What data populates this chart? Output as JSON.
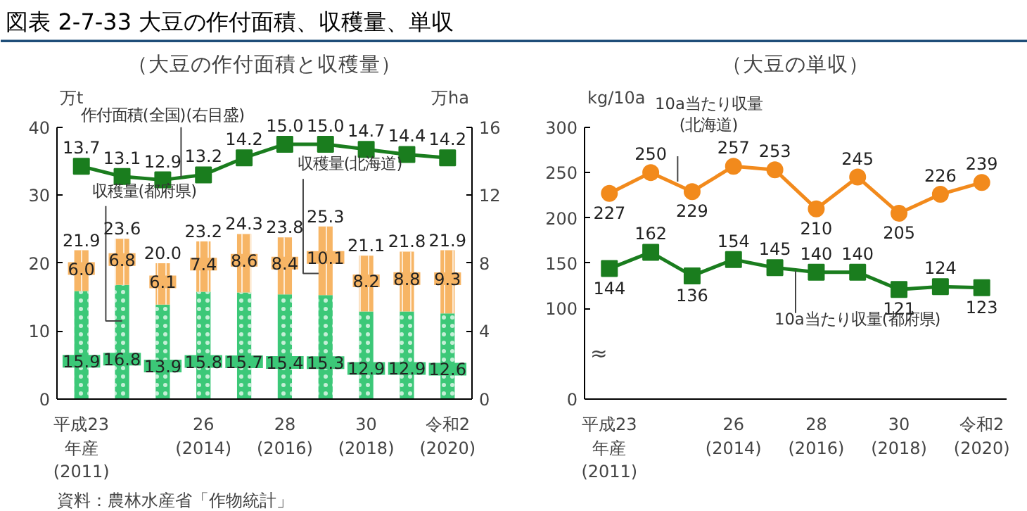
{
  "chart_data": [
    {
      "type": "bar",
      "title": "図表 2-7-33 大豆の作付面積、収穫量、単収",
      "subtitle": "（大豆の作付面積と収穫量）",
      "ylabel": "万t",
      "y2label": "万ha",
      "categories": [
        "平成23\n年産\n(2011)",
        null,
        null,
        "26\n(2014)",
        null,
        "28\n(2016)",
        null,
        "30\n(2018)",
        null,
        "令和2\n(2020)"
      ],
      "stacked": true,
      "series": [
        {
          "name": "収穫量(都府県)",
          "type": "bar",
          "color": "#3cc878",
          "values": [
            15.9,
            16.8,
            13.9,
            15.8,
            15.7,
            15.4,
            15.3,
            12.9,
            12.9,
            12.6
          ],
          "value_labels": [
            "15.9",
            "16.8",
            "13.9",
            "15.8",
            "15.7",
            "15.4",
            "15.3",
            "12.9",
            "12.9",
            "12.6"
          ]
        },
        {
          "name": "収穫量(北海道)",
          "type": "bar",
          "color": "#f7b565",
          "values": [
            6.0,
            6.8,
            6.1,
            7.4,
            8.6,
            8.4,
            10.1,
            8.2,
            8.8,
            9.3
          ],
          "value_labels": [
            "6.0",
            "6.8",
            "6.1",
            "7.4",
            "8.6",
            "8.4",
            "10.1",
            "8.2",
            "8.8",
            "9.3"
          ]
        },
        {
          "name": "作付面積(全国)(右目盛)",
          "type": "line",
          "axis": "y2",
          "color": "#1a7d1e",
          "marker": "square",
          "values": [
            13.7,
            13.1,
            12.9,
            13.2,
            14.2,
            15.0,
            15.0,
            14.7,
            14.4,
            14.2
          ],
          "value_labels": [
            "13.7",
            "13.1",
            "12.9",
            "13.2",
            "14.2",
            "15.0",
            "15.0",
            "14.7",
            "14.4",
            "14.2"
          ]
        }
      ],
      "totals": [
        "21.9",
        "23.6",
        "20.0",
        "23.2",
        "24.3",
        "23.8",
        "25.3",
        "21.1",
        "21.8",
        "21.9"
      ],
      "grid": false,
      "legend": false,
      "ylim": [
        0,
        40
      ],
      "yticks": [
        0,
        10,
        20,
        30,
        40
      ],
      "y2lim": [
        0,
        16
      ],
      "y2ticks": [
        0,
        4,
        8,
        12,
        16
      ],
      "annotations": [
        "資料：農林水産省「作物統計」"
      ]
    },
    {
      "type": "line",
      "title": "（大豆の単収）",
      "ylabel": "kg/10a",
      "categories": [
        "平成23\n年産\n(2011)",
        null,
        null,
        "26\n(2014)",
        null,
        "28\n(2016)",
        null,
        "30\n(2018)",
        null,
        "令和2\n(2020)"
      ],
      "series": [
        {
          "name": "10a当たり収量\n(北海道)",
          "color": "#f28a1c",
          "marker": "circle",
          "values": [
            227,
            250,
            229,
            257,
            253,
            210,
            245,
            205,
            226,
            239
          ]
        },
        {
          "name": "10a当たり収量(都府県)",
          "color": "#1a7d1e",
          "marker": "square",
          "values": [
            144,
            162,
            136,
            154,
            145,
            140,
            140,
            121,
            124,
            123
          ]
        }
      ],
      "data_labels": true,
      "grid": false,
      "legend": false,
      "ylim": [
        0,
        300
      ],
      "yticks": [
        0,
        100,
        150,
        200,
        250,
        300
      ],
      "annotations": [
        "≈"
      ]
    }
  ]
}
